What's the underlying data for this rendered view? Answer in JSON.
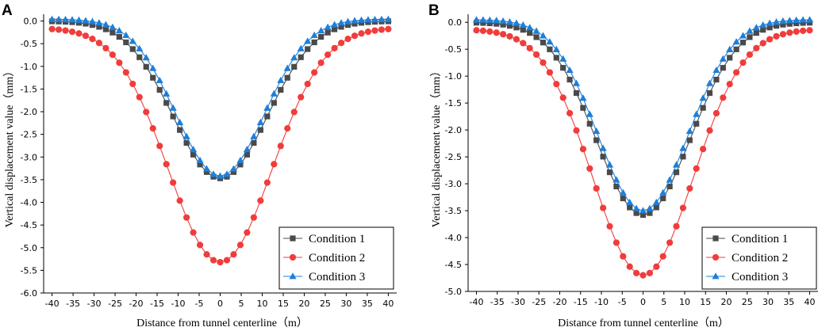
{
  "chart_data": [
    {
      "panel_label": "A",
      "type": "line",
      "xlabel": "Distance from tunnel centerline（m）",
      "ylabel": "Vertical displacement value（mm）",
      "xlim": [
        -42,
        42
      ],
      "ylim": [
        -6.0,
        0.15
      ],
      "xticks": [
        -40,
        -35,
        -30,
        -25,
        -20,
        -15,
        -10,
        -5,
        0,
        5,
        10,
        15,
        20,
        25,
        30,
        35,
        40
      ],
      "yticks": [
        0.0,
        -0.5,
        -1.0,
        -1.5,
        -2.0,
        -2.5,
        -3.0,
        -3.5,
        -4.0,
        -4.5,
        -5.0,
        -5.5,
        -6.0
      ],
      "ytick_labels": [
        "0.0",
        "-0.5",
        "-1.0",
        "-1.5",
        "-2.0",
        "-2.5",
        "-3.0",
        "-3.5",
        "-4.0",
        "-4.5",
        "-5.0",
        "-5.5",
        "-6.0"
      ],
      "legend_position": "bottom-right",
      "x": {
        "start": -40,
        "end": 40,
        "step": 1.6
      },
      "series": [
        {
          "name": "Condition 1",
          "color": "#4a4a4a",
          "marker": "square",
          "min": -3.47,
          "max": 0.0,
          "sigma": 11.2
        },
        {
          "name": "Condition 2",
          "color": "#f03c3c",
          "marker": "circle",
          "min": -5.32,
          "max": -0.15,
          "sigma": 12.3
        },
        {
          "name": "Condition 3",
          "color": "#1e7fd8",
          "marker": "triangle",
          "min": -3.42,
          "max": 0.04,
          "sigma": 10.5
        }
      ]
    },
    {
      "panel_label": "B",
      "type": "line",
      "xlabel": "Distance from tunnel centerline（m）",
      "ylabel": "Vertical displacement value（mm）",
      "xlim": [
        -42,
        42
      ],
      "ylim": [
        -5.0,
        0.15
      ],
      "xticks": [
        -40,
        -35,
        -30,
        -25,
        -20,
        -15,
        -10,
        -5,
        0,
        5,
        10,
        15,
        20,
        25,
        30,
        35,
        40
      ],
      "yticks": [
        0.0,
        -0.5,
        -1.0,
        -1.5,
        -2.0,
        -2.5,
        -3.0,
        -3.5,
        -4.0,
        -4.5,
        -5.0
      ],
      "ytick_labels": [
        "0.0",
        "-0.5",
        "-1.0",
        "-1.5",
        "-2.0",
        "-2.5",
        "-3.0",
        "-3.5",
        "-4.0",
        "-4.5",
        "-5.0"
      ],
      "legend_position": "bottom-right",
      "x": {
        "start": -40,
        "end": 40,
        "step": 1.6
      },
      "series": [
        {
          "name": "Condition 1",
          "color": "#4a4a4a",
          "marker": "square",
          "min": -3.58,
          "max": 0.0,
          "sigma": 11.3
        },
        {
          "name": "Condition 2",
          "color": "#f03c3c",
          "marker": "circle",
          "min": -4.7,
          "max": -0.13,
          "sigma": 12.0
        },
        {
          "name": "Condition 3",
          "color": "#1e7fd8",
          "marker": "triangle",
          "min": -3.5,
          "max": 0.05,
          "sigma": 10.8
        }
      ]
    }
  ]
}
